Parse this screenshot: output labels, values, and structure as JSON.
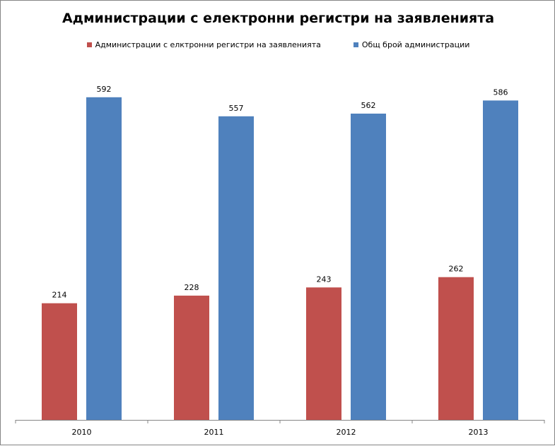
{
  "chart_data": {
    "type": "bar",
    "title": "Администрации с електронни регистри на заявленията",
    "categories": [
      "2010",
      "2011",
      "2012",
      "2013"
    ],
    "series": [
      {
        "name": "Администрации с елктронни регистри на заявленията",
        "color": "#c0504d",
        "values": [
          214,
          228,
          243,
          262
        ]
      },
      {
        "name": "Общ брой администрации",
        "color": "#4f81bd",
        "values": [
          592,
          557,
          562,
          586
        ]
      }
    ],
    "xlabel": "",
    "ylabel": "",
    "ylim": [
      0,
      650
    ],
    "grid": false,
    "legend": "top",
    "data_labels": true
  }
}
